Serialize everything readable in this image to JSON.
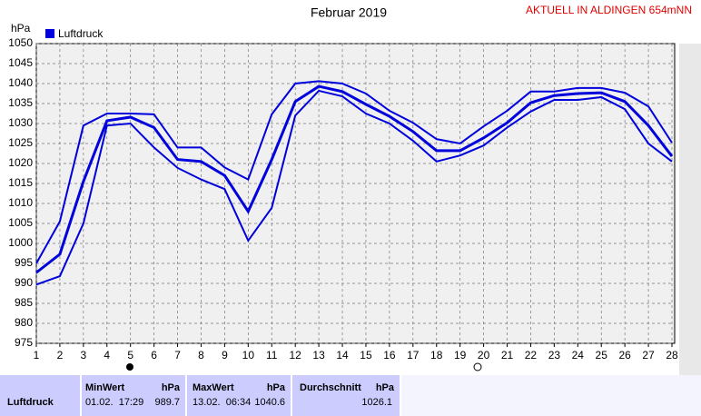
{
  "chart_data": {
    "type": "line",
    "title": "Februar 2019",
    "annotation": "AKTUELL IN ALDINGEN 654mNN",
    "y_label": "hPa",
    "legend": "Luftdruck",
    "x": [
      1,
      2,
      3,
      4,
      5,
      6,
      7,
      8,
      9,
      10,
      11,
      12,
      13,
      14,
      15,
      16,
      17,
      18,
      19,
      20,
      21,
      22,
      23,
      24,
      25,
      26,
      27,
      28
    ],
    "xlim": [
      1,
      28
    ],
    "xticks": [
      1,
      2,
      3,
      4,
      5,
      6,
      7,
      8,
      9,
      10,
      11,
      12,
      13,
      14,
      15,
      16,
      17,
      18,
      19,
      20,
      21,
      22,
      23,
      24,
      25,
      26,
      27,
      28
    ],
    "ylim": [
      975,
      1050
    ],
    "yticks": [
      975,
      980,
      985,
      990,
      995,
      1000,
      1005,
      1010,
      1015,
      1020,
      1025,
      1030,
      1035,
      1040,
      1045,
      1050
    ],
    "grid": true,
    "series": [
      {
        "color": "#0000dd",
        "values": [
          995,
          1005.5,
          1029.5,
          1032.5,
          1032.5,
          1032.3,
          1024,
          1024,
          1019,
          1016,
          1032.3,
          1040,
          1040.6,
          1040,
          1037.5,
          1033.2,
          1030.2,
          1026.1,
          1025,
          1029.3,
          1033.2,
          1038,
          1038,
          1038.9,
          1038.9,
          1037.7,
          1034.3,
          1025.2
        ]
      },
      {
        "color": "#0000dd",
        "values": [
          992.7,
          997.3,
          1015.5,
          1030.7,
          1031.6,
          1029,
          1021,
          1020.5,
          1017,
          1008,
          1021,
          1035.5,
          1039.3,
          1038,
          1034.8,
          1031.8,
          1028,
          1023.2,
          1023.2,
          1026.4,
          1030.2,
          1035.2,
          1037,
          1037.5,
          1037.7,
          1035.5,
          1029.5,
          1021.8
        ]
      },
      {
        "color": "#0000dd",
        "values": [
          989.7,
          991.8,
          1005,
          1029.5,
          1030,
          1024,
          1018.9,
          1016,
          1013.6,
          1000.7,
          1008.9,
          1032,
          1038.2,
          1036.8,
          1032.5,
          1030,
          1025.7,
          1020.5,
          1022,
          1024.5,
          1029,
          1033,
          1035.9,
          1035.9,
          1036.6,
          1033.6,
          1025,
          1020.5
        ]
      }
    ]
  },
  "table": {
    "min_title": "MinWert",
    "max_title": "MaxWert",
    "avg_title": "Durchschnitt",
    "unit": "hPa",
    "row_label": "Luftdruck",
    "min_time": "01.02.  17:29",
    "min": 989.7,
    "max_time": "13.02.  06:34",
    "max": 1040.6,
    "avg": 1026.1
  }
}
